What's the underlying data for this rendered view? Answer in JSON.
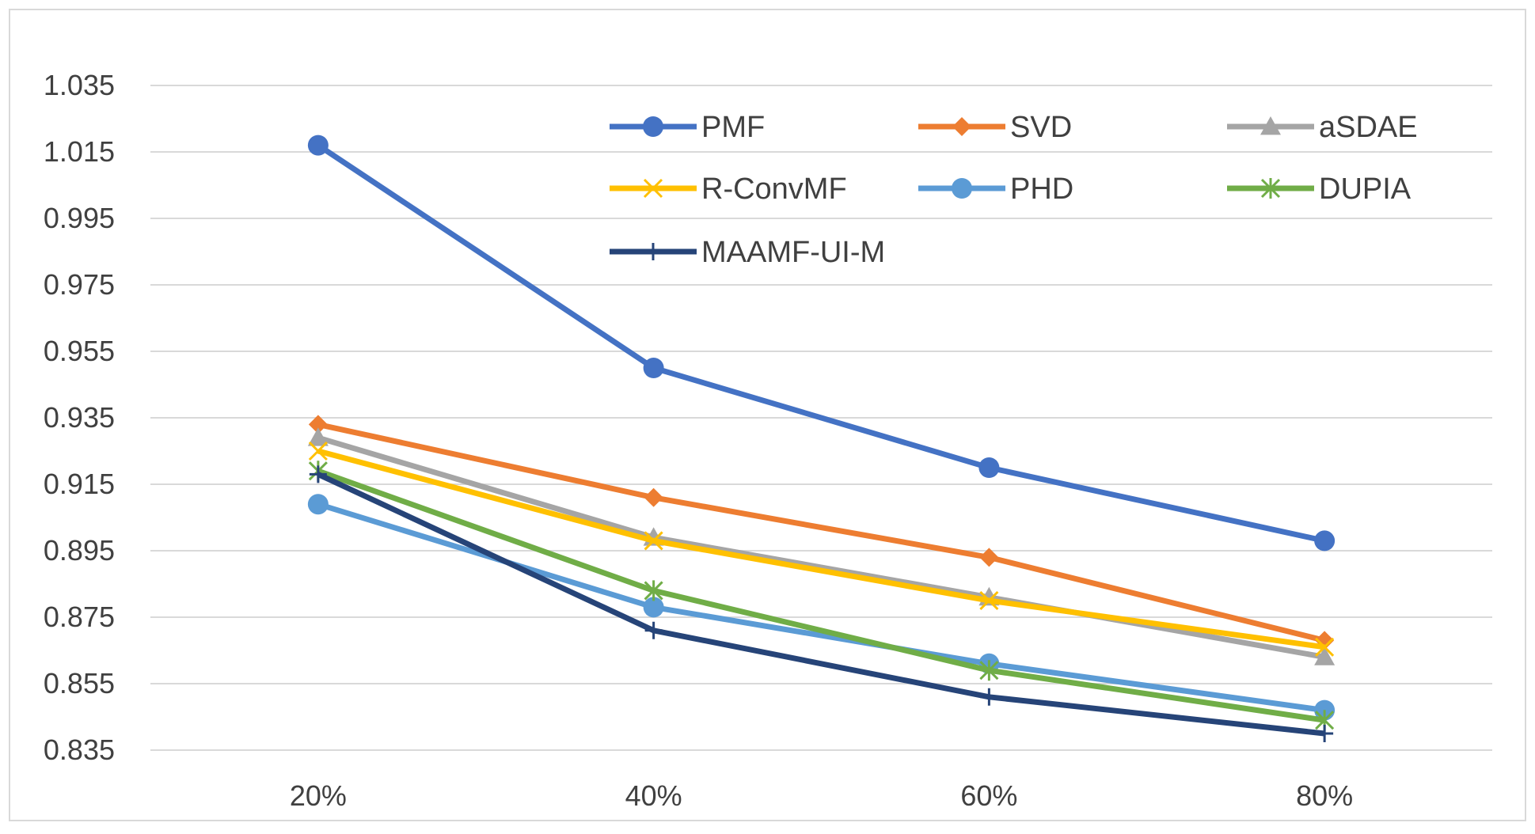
{
  "chart_data": {
    "type": "line",
    "title": "",
    "xlabel": "",
    "ylabel": "",
    "categories": [
      "20%",
      "40%",
      "60%",
      "80%"
    ],
    "ylim": [
      0.835,
      1.035
    ],
    "yticks": [
      "0.835",
      "0.855",
      "0.875",
      "0.895",
      "0.915",
      "0.935",
      "0.955",
      "0.975",
      "0.995",
      "1.015",
      "1.035"
    ],
    "grid": true,
    "legend_position": "top-right",
    "series": [
      {
        "name": "PMF",
        "color": "#4472C4",
        "marker": "circle",
        "values": [
          1.017,
          0.95,
          0.92,
          0.898
        ]
      },
      {
        "name": "SVD",
        "color": "#ED7D31",
        "marker": "diamond",
        "values": [
          0.933,
          0.911,
          0.893,
          0.868
        ]
      },
      {
        "name": "aSDAE",
        "color": "#A5A5A5",
        "marker": "triangle",
        "values": [
          0.929,
          0.899,
          0.881,
          0.863
        ]
      },
      {
        "name": "R-ConvMF",
        "color": "#FFC000",
        "marker": "x",
        "values": [
          0.925,
          0.898,
          0.88,
          0.866
        ]
      },
      {
        "name": "PHD",
        "color": "#5B9BD5",
        "marker": "circle",
        "values": [
          0.909,
          0.878,
          0.861,
          0.847
        ]
      },
      {
        "name": "DUPIA",
        "color": "#70AD47",
        "marker": "asterisk",
        "values": [
          0.919,
          0.883,
          0.859,
          0.844
        ]
      },
      {
        "name": "MAAMF-UI-M",
        "color": "#264478",
        "marker": "plus",
        "values": [
          0.918,
          0.871,
          0.851,
          0.84
        ]
      }
    ]
  }
}
